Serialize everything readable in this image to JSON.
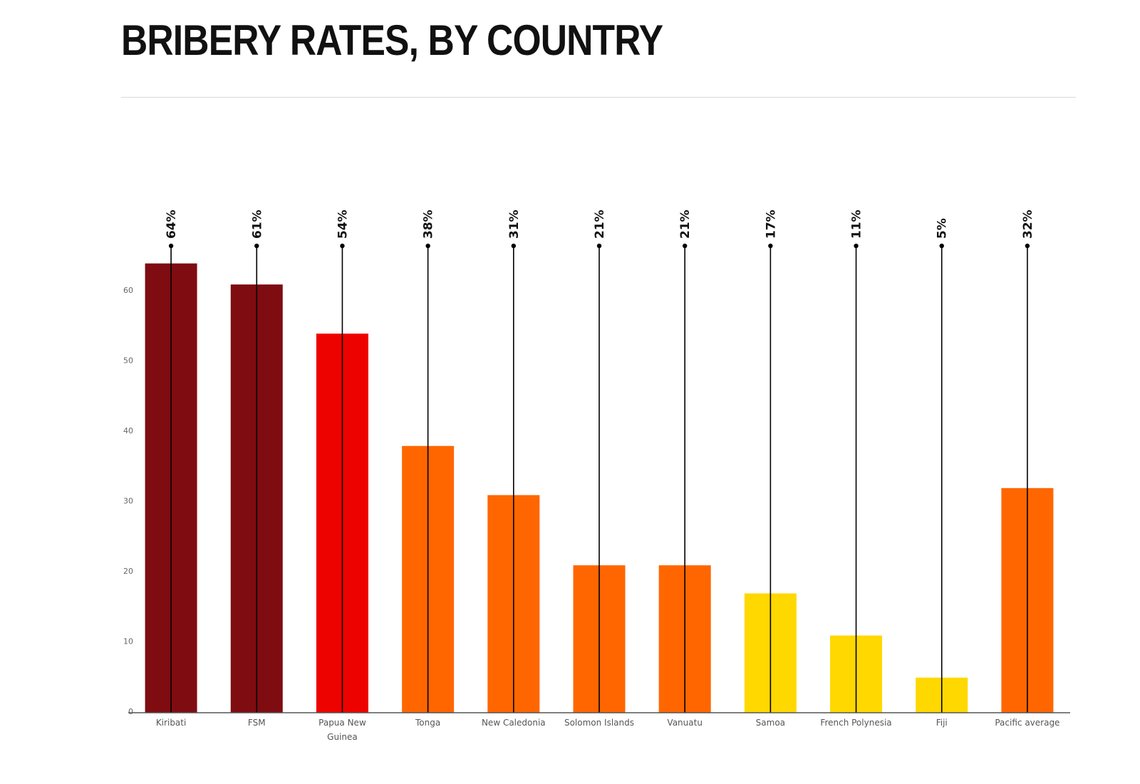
{
  "page": {
    "title": "BRIBERY RATES, BY COUNTRY"
  },
  "chart_data": {
    "type": "bar",
    "title": "BRIBERY RATES, BY COUNTRY",
    "xlabel": "",
    "ylabel": "",
    "ylim": [
      0,
      65
    ],
    "yticks": [
      0,
      10,
      20,
      30,
      40,
      50,
      60
    ],
    "grid": false,
    "categories": [
      "Kiribati",
      "FSM",
      "Papua New Guinea",
      "Tonga",
      "New Caledonia",
      "Solomon Islands",
      "Vanuatu",
      "Samoa",
      "French Polynesia",
      "Fiji",
      "Pacific average"
    ],
    "values": [
      64,
      61,
      54,
      38,
      31,
      21,
      21,
      17,
      11,
      5,
      32
    ],
    "data_labels": [
      "64%",
      "61%",
      "54%",
      "38%",
      "31%",
      "21%",
      "21%",
      "17%",
      "11%",
      "5%",
      "32%"
    ],
    "bar_colors": [
      "#7f0c11",
      "#7f0c11",
      "#ee0200",
      "#ff6600",
      "#ff6600",
      "#ff6600",
      "#ff6600",
      "#ffd800",
      "#ffd800",
      "#ffd800",
      "#ff6600"
    ],
    "axis_color": "#555555",
    "pin_color": "#000000"
  }
}
